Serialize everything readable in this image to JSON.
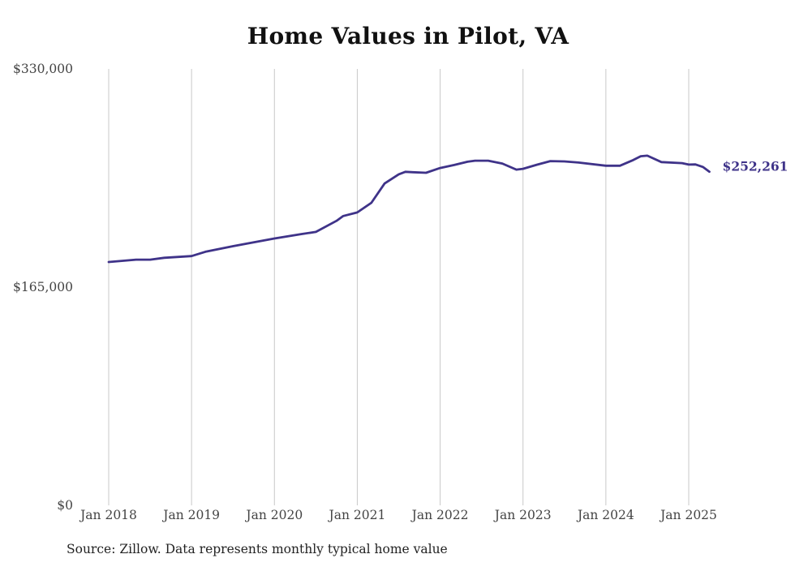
{
  "title": "Home Values in Pilot, VA",
  "source": "Source: Zillow. Data represents monthly typical home value",
  "chart_data": {
    "type": "line",
    "title": "Home Values in Pilot, VA",
    "xlabel": "",
    "ylabel": "",
    "ylim": [
      0,
      330000
    ],
    "y_ticks": [
      "$0",
      "$165,000",
      "$330,000"
    ],
    "y_tick_values": [
      0,
      165000,
      330000
    ],
    "x_ticks": [
      "Jan 2018",
      "Jan 2019",
      "Jan 2020",
      "Jan 2021",
      "Jan 2022",
      "Jan 2023",
      "Jan 2024",
      "Jan 2025"
    ],
    "x_tick_values": [
      2018.0,
      2019.0,
      2020.0,
      2021.0,
      2022.0,
      2023.0,
      2024.0,
      2025.0
    ],
    "xlim": [
      2018.0,
      2025.25
    ],
    "grid": "vertical",
    "line_color": "#3f3389",
    "end_label": "$252,261",
    "series": [
      {
        "x": [
          2018.0,
          2018.33,
          2018.5,
          2018.67,
          2019.0,
          2019.17,
          2019.5,
          2019.67,
          2020.0,
          2020.33,
          2020.5,
          2020.75,
          2020.83,
          2021.0,
          2021.17,
          2021.33,
          2021.5,
          2021.58,
          2021.67,
          2021.83,
          2022.0,
          2022.17,
          2022.33,
          2022.42,
          2022.58,
          2022.75,
          2022.92,
          2023.0,
          2023.17,
          2023.33,
          2023.5,
          2023.67,
          2024.0,
          2024.17,
          2024.33,
          2024.42,
          2024.5,
          2024.67,
          2024.92,
          2025.0,
          2025.08,
          2025.17,
          2025.25
        ],
        "y": [
          184000,
          185800,
          185800,
          187200,
          188500,
          191800,
          196000,
          198000,
          201800,
          205200,
          206800,
          215200,
          218800,
          221500,
          228800,
          243400,
          250300,
          252200,
          251900,
          251500,
          255100,
          257400,
          259800,
          260600,
          260600,
          258500,
          253900,
          254500,
          257600,
          260300,
          260100,
          259200,
          256800,
          256800,
          261100,
          264000,
          264400,
          259600,
          258800,
          257700,
          257800,
          255900,
          252261
        ]
      }
    ]
  }
}
